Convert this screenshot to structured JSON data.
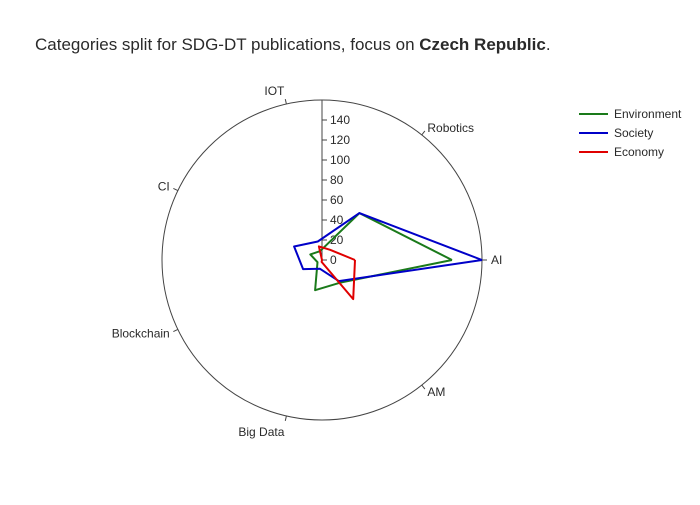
{
  "chart_data": {
    "type": "radar",
    "title_parts": [
      {
        "text": "Categories split for SDG-DT publications, focus on ",
        "bold": false
      },
      {
        "text": "Czech Republic",
        "bold": true
      },
      {
        "text": ".",
        "bold": false
      }
    ],
    "categories": [
      "AI",
      "Robotics",
      "IOT",
      "CI",
      "Blockchain",
      "Big Data",
      "AM"
    ],
    "radial_range": [
      0,
      160
    ],
    "radial_ticks": [
      0,
      20,
      40,
      60,
      80,
      100,
      120,
      140
    ],
    "angular_start_deg": 0,
    "angular_direction": "counterclockwise",
    "legend_position": "top-right",
    "series": [
      {
        "name": "Environment",
        "color": "#1a7a1a",
        "values": [
          130,
          60,
          9,
          13,
          5,
          31,
          29
        ]
      },
      {
        "name": "Society",
        "color": "#0000c8",
        "values": [
          160,
          60,
          19,
          31,
          21,
          9,
          27
        ]
      },
      {
        "name": "Economy",
        "color": "#e00000",
        "values": [
          33,
          13,
          14,
          0,
          0,
          2,
          50
        ]
      }
    ]
  }
}
